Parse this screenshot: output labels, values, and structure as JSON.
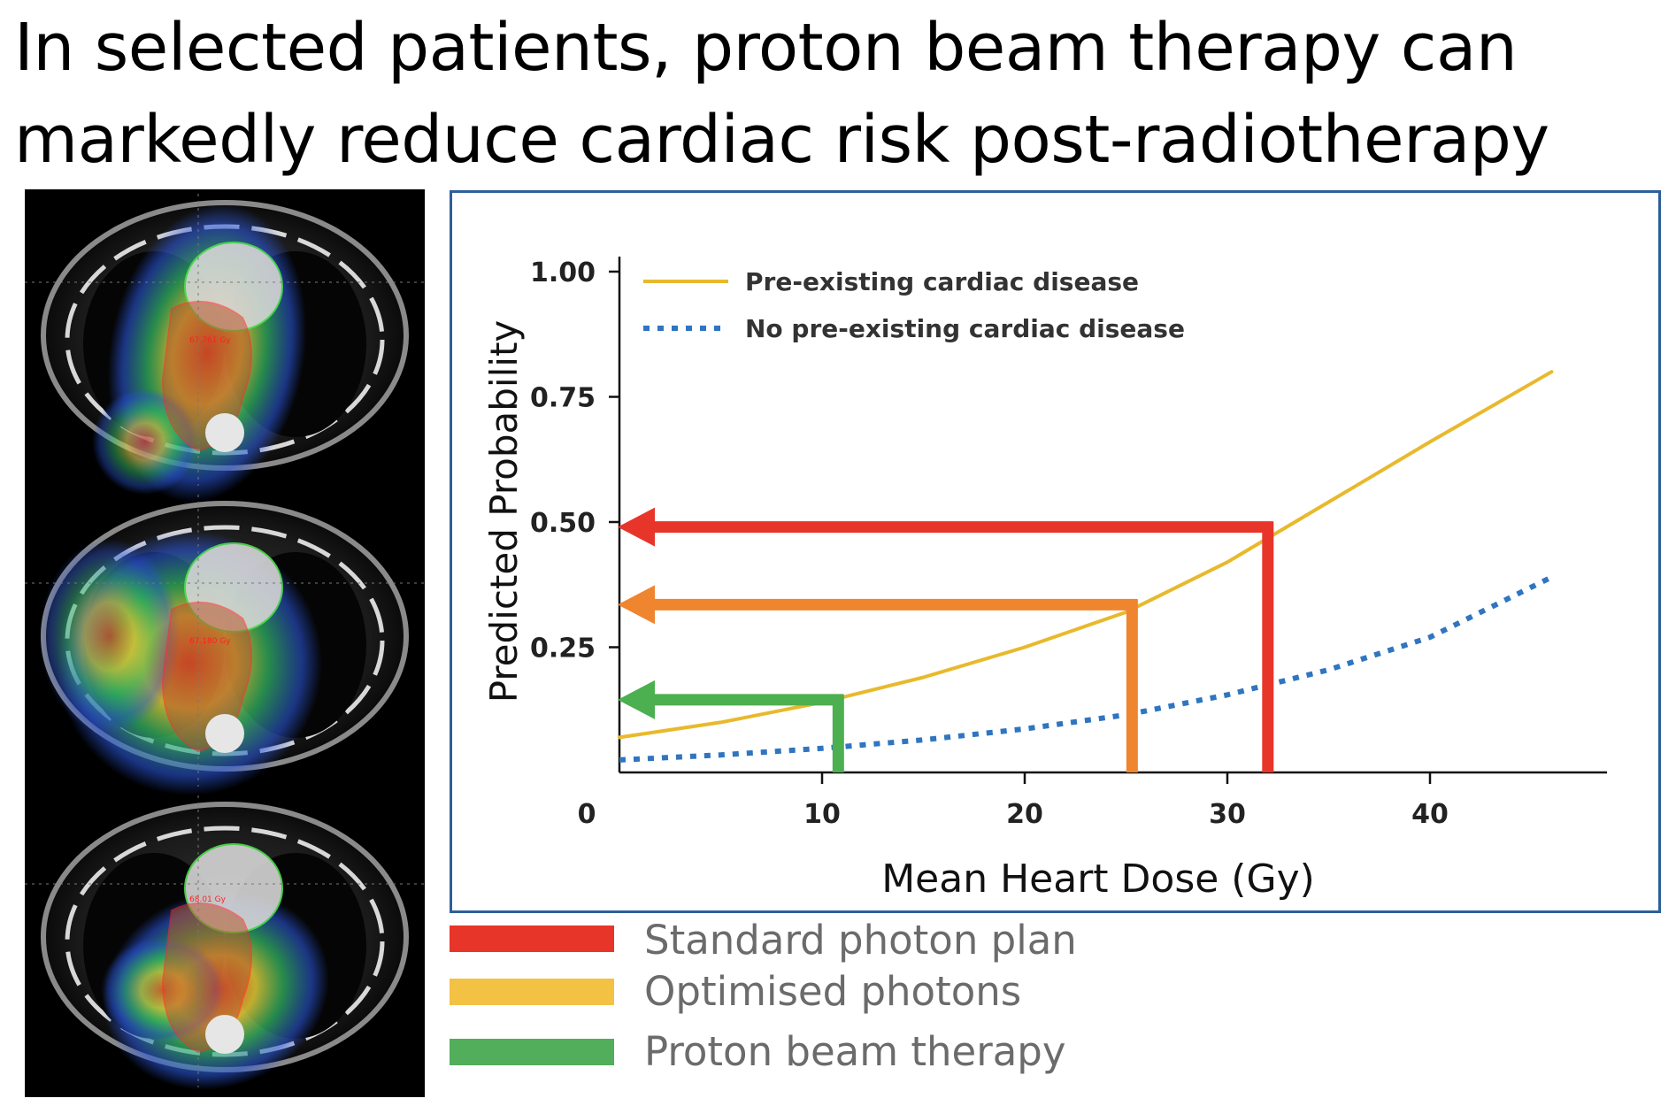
{
  "title_lines": [
    "In selected patients, proton beam therapy can",
    "markedly reduce cardiac risk post-radiotherapy"
  ],
  "ct_scans": [
    {
      "name": "standard-photon-ct",
      "dose_label": "67.761 Gy"
    },
    {
      "name": "optimised-photon-ct",
      "dose_label": "67.180 Gy"
    },
    {
      "name": "proton-ct",
      "dose_label": "68.01 Gy"
    }
  ],
  "chart_data": {
    "type": "line",
    "xlabel": "Mean Heart Dose (Gy)",
    "ylabel": "Predicted Probability",
    "xlim": [
      0,
      48
    ],
    "ylim": [
      0,
      1.0
    ],
    "x_ticks": [
      0,
      10,
      20,
      30,
      40
    ],
    "x_tick_labels": [
      "0",
      "10",
      "20",
      "30",
      "40"
    ],
    "y_ticks": [
      0.25,
      0.5,
      0.75,
      1.0
    ],
    "y_tick_labels": [
      "0.25",
      "0.50",
      "0.75",
      "1.00"
    ],
    "legend": [
      {
        "label": "Pre-existing cardiac disease",
        "color": "#e8b92c",
        "style": "solid"
      },
      {
        "label": "No pre-existing cardiac disease",
        "color": "#2f75c0",
        "style": "dotted"
      }
    ],
    "series": [
      {
        "name": "Pre-existing cardiac disease",
        "color": "#e8b92c",
        "x": [
          0,
          5,
          10,
          15,
          20,
          25,
          30,
          35,
          40,
          46
        ],
        "y": [
          0.07,
          0.1,
          0.14,
          0.19,
          0.25,
          0.32,
          0.42,
          0.54,
          0.66,
          0.8
        ]
      },
      {
        "name": "No pre-existing cardiac disease",
        "color": "#2f75c0",
        "x": [
          0,
          5,
          10,
          15,
          20,
          25,
          30,
          35,
          40,
          46
        ],
        "y": [
          0.025,
          0.035,
          0.048,
          0.065,
          0.087,
          0.115,
          0.155,
          0.205,
          0.27,
          0.39
        ]
      }
    ],
    "annotations": [
      {
        "label": "Standard photon plan",
        "color": "#e8352a",
        "dose": 32,
        "probability": 0.49
      },
      {
        "label": "Optimised photons",
        "color": "#f0852f",
        "dose": 25.3,
        "probability": 0.335
      },
      {
        "label": "Proton beam therapy",
        "color": "#4caf50",
        "dose": 10.8,
        "probability": 0.145
      }
    ]
  },
  "plan_legend": [
    {
      "label": "Standard photon plan",
      "color": "#e8352a"
    },
    {
      "label": "Optimised photons",
      "color": "#f3c144"
    },
    {
      "label": "Proton beam therapy",
      "color": "#52ae5a"
    }
  ]
}
